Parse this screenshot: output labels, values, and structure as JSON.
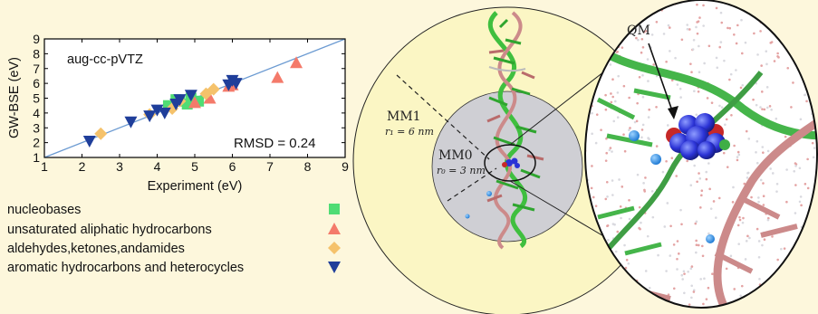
{
  "chart_data": {
    "type": "scatter",
    "xlabel": "Experiment (eV)",
    "ylabel": "GW-BSE (eV)",
    "xlim": [
      1,
      9
    ],
    "ylim": [
      1,
      9
    ],
    "xticks": [
      "1",
      "2",
      "3",
      "4",
      "5",
      "6",
      "7",
      "8",
      "9"
    ],
    "yticks": [
      "1",
      "2",
      "3",
      "4",
      "5",
      "6",
      "7",
      "8",
      "9"
    ],
    "annotation_method": "aug-cc-pVTZ",
    "annotation_rmsd": "RMSD = 0.24",
    "diagonal": [
      [
        1,
        1
      ],
      [
        9,
        9
      ]
    ],
    "grid": false,
    "series": [
      {
        "name": "nucleobases",
        "marker": "square",
        "color": "#4fdc74",
        "points": [
          [
            4.5,
            4.9
          ],
          [
            4.6,
            4.8
          ],
          [
            4.8,
            4.6
          ],
          [
            4.9,
            5.0
          ],
          [
            5.1,
            4.8
          ],
          [
            4.3,
            4.5
          ]
        ]
      },
      {
        "name": "unsaturated aliphatic hydrocarbons",
        "marker": "triangle-up",
        "color": "#f47a6a",
        "points": [
          [
            5.0,
            4.7
          ],
          [
            5.4,
            5.0
          ],
          [
            5.9,
            5.8
          ],
          [
            7.2,
            6.4
          ],
          [
            7.7,
            7.4
          ],
          [
            6.0,
            5.9
          ]
        ]
      },
      {
        "name": "aldehydes,ketones,andamides",
        "marker": "diamond",
        "color": "#f5c26b",
        "points": [
          [
            2.5,
            2.6
          ],
          [
            3.8,
            3.9
          ],
          [
            4.4,
            4.3
          ],
          [
            5.3,
            5.3
          ],
          [
            5.5,
            5.6
          ],
          [
            4.6,
            4.8
          ]
        ]
      },
      {
        "name": "aromatic hydrocarbons and heterocycles",
        "marker": "triangle-down",
        "color": "#1f3e9a",
        "points": [
          [
            2.2,
            2.1
          ],
          [
            3.3,
            3.4
          ],
          [
            3.8,
            3.8
          ],
          [
            4.0,
            4.2
          ],
          [
            4.2,
            4.0
          ],
          [
            4.5,
            4.6
          ],
          [
            4.6,
            4.9
          ],
          [
            4.9,
            5.2
          ],
          [
            6.0,
            6.2
          ],
          [
            5.9,
            5.9
          ],
          [
            6.1,
            6.0
          ]
        ]
      }
    ]
  },
  "diagram": {
    "mm1_label": "MM1",
    "mm1_radius_label": "r₁ = 6 nm",
    "mm0_label": "MM0",
    "mm0_radius_label": "r₀ = 3 nm",
    "qm_label": "QM"
  }
}
